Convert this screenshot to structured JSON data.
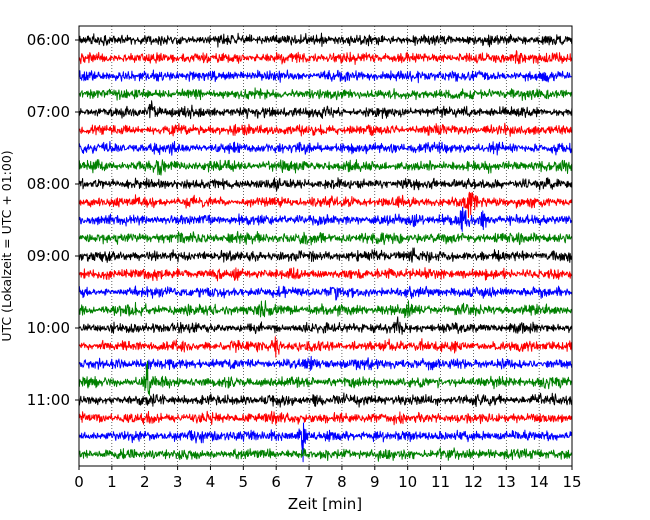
{
  "chart_data": {
    "type": "line",
    "title": "",
    "xlabel": "Zeit  [min]",
    "ylabel": "UTC (Lokalzeit = UTC + 01:00)",
    "xlim": [
      0,
      15
    ],
    "x_ticks": [
      "0",
      "1",
      "2",
      "3",
      "4",
      "5",
      "6",
      "7",
      "8",
      "9",
      "10",
      "11",
      "12",
      "13",
      "14",
      "15"
    ],
    "y_tick_labels": [
      "06:00",
      "07:00",
      "08:00",
      "09:00",
      "10:00",
      "11:00"
    ],
    "grid": {
      "vertical": true,
      "style": "dotted"
    },
    "trace_interval_minutes": 15,
    "trace_colors": [
      "#000000",
      "#ff0000",
      "#0000ff",
      "#008000"
    ],
    "traces": [
      {
        "start": "06:00",
        "color": "#000000",
        "events": [
          {
            "t": 7.4,
            "amp": 0.45
          }
        ]
      },
      {
        "start": "06:15",
        "color": "#ff0000",
        "events": [
          {
            "t": 13.3,
            "amp": 0.6
          }
        ]
      },
      {
        "start": "06:30",
        "color": "#0000ff",
        "events": []
      },
      {
        "start": "06:45",
        "color": "#008000",
        "events": []
      },
      {
        "start": "07:00",
        "color": "#000000",
        "events": [
          {
            "t": 2.2,
            "amp": 1.4
          }
        ]
      },
      {
        "start": "07:15",
        "color": "#ff0000",
        "events": []
      },
      {
        "start": "07:30",
        "color": "#0000ff",
        "events": [
          {
            "t": 9.6,
            "amp": 0.4
          }
        ]
      },
      {
        "start": "07:45",
        "color": "#008000",
        "events": [
          {
            "t": 2.4,
            "amp": 0.45
          },
          {
            "t": 14.8,
            "amp": 0.5
          }
        ]
      },
      {
        "start": "08:00",
        "color": "#000000",
        "events": [
          {
            "t": 10.7,
            "amp": 0.4
          }
        ]
      },
      {
        "start": "08:15",
        "color": "#ff0000",
        "events": [
          {
            "t": 11.9,
            "amp": 1.4
          }
        ]
      },
      {
        "start": "08:30",
        "color": "#0000ff",
        "events": [
          {
            "t": 11.7,
            "amp": 1.6
          },
          {
            "t": 12.3,
            "amp": 1.0
          },
          {
            "t": 10.2,
            "amp": 0.35
          }
        ]
      },
      {
        "start": "08:45",
        "color": "#008000",
        "events": [
          {
            "t": 9.8,
            "amp": 0.45
          }
        ]
      },
      {
        "start": "09:00",
        "color": "#000000",
        "events": [
          {
            "t": 10.1,
            "amp": 0.9
          }
        ]
      },
      {
        "start": "09:15",
        "color": "#ff0000",
        "events": [
          {
            "t": 4.8,
            "amp": 0.45
          },
          {
            "t": 9.4,
            "amp": 0.4
          }
        ]
      },
      {
        "start": "09:30",
        "color": "#0000ff",
        "events": [
          {
            "t": 7.8,
            "amp": 0.45
          }
        ]
      },
      {
        "start": "09:45",
        "color": "#008000",
        "events": [
          {
            "t": 5.6,
            "amp": 0.5
          },
          {
            "t": 10.0,
            "amp": 0.55
          }
        ]
      },
      {
        "start": "10:00",
        "color": "#000000",
        "events": [
          {
            "t": 9.7,
            "amp": 0.5
          }
        ]
      },
      {
        "start": "10:15",
        "color": "#ff0000",
        "events": [
          {
            "t": 6.0,
            "amp": 1.0
          },
          {
            "t": 10.4,
            "amp": 0.45
          }
        ]
      },
      {
        "start": "10:30",
        "color": "#0000ff",
        "events": [
          {
            "t": 7.1,
            "amp": 0.6
          },
          {
            "t": 2.1,
            "amp": 0.4
          }
        ]
      },
      {
        "start": "10:45",
        "color": "#008000",
        "events": [
          {
            "t": 2.1,
            "amp": 1.6
          },
          {
            "t": 14.2,
            "amp": 0.5
          }
        ]
      },
      {
        "start": "11:00",
        "color": "#000000",
        "events": [
          {
            "t": 7.2,
            "amp": 0.5
          }
        ]
      },
      {
        "start": "11:15",
        "color": "#ff0000",
        "events": [
          {
            "t": 6.7,
            "amp": 0.45
          }
        ]
      },
      {
        "start": "11:30",
        "color": "#0000ff",
        "events": [
          {
            "t": 6.8,
            "amp": 2.2
          }
        ]
      },
      {
        "start": "11:45",
        "color": "#008000",
        "events": []
      }
    ]
  }
}
